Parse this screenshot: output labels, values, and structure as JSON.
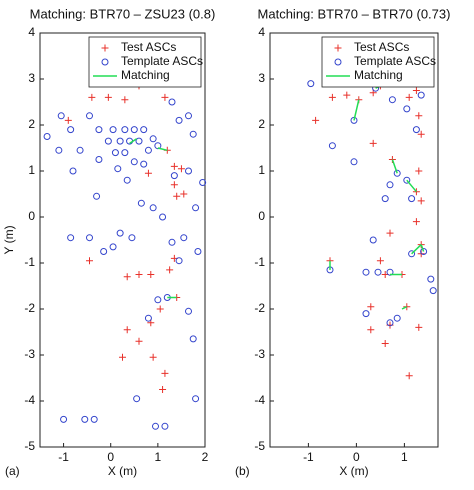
{
  "chart_data": [
    {
      "type": "scatter",
      "title": "Matching: BTR70 – ZSU23 (0.8)",
      "panel_label": "(a)",
      "x_label": "X (m)",
      "y_label": "Y (m)",
      "xlim": [
        -1.5,
        2
      ],
      "xticks": [
        -1,
        0,
        1,
        2
      ],
      "ylim": [
        -5,
        4
      ],
      "yticks": [
        -5,
        -4,
        -3,
        -2,
        -1,
        0,
        1,
        2,
        3,
        4
      ],
      "legend": "upper right",
      "series": [
        {
          "name": "Test ASCs",
          "marker": "plus",
          "color": "#e8312a",
          "x": [
            -0.4,
            -0.05,
            0.3,
            0.6,
            1.15,
            1.2,
            1.35,
            1.35,
            1.4,
            1.55,
            1.5,
            0.8,
            -0.9,
            -0.45,
            0.35,
            0.6,
            0.85,
            1.35,
            1.25,
            1.4,
            1.05,
            0.85,
            0.35,
            0.6,
            0.25,
            0.9,
            1.15,
            1.1
          ],
          "y": [
            2.6,
            2.6,
            2.55,
            2.85,
            2.6,
            1.45,
            1.1,
            0.7,
            0.45,
            0.5,
            1.05,
            0.95,
            2.1,
            -0.95,
            -1.3,
            -1.25,
            -1.25,
            -0.9,
            -1.15,
            -1.75,
            -2.0,
            -2.3,
            -2.45,
            -2.7,
            -3.05,
            -3.05,
            -3.4,
            -3.75
          ]
        },
        {
          "name": "Template ASCs",
          "marker": "circle",
          "color": "#3344cc",
          "x": [
            -1.05,
            -0.85,
            -0.45,
            -1.35,
            -1.1,
            -0.65,
            -0.8,
            -0.25,
            0.05,
            0.3,
            0.5,
            0.7,
            0.9,
            -0.05,
            0.2,
            0.4,
            0.6,
            0.8,
            0.1,
            0.3,
            0.5,
            0.7,
            -0.25,
            0.15,
            0.35,
            1.0,
            1.3,
            1.45,
            1.65,
            1.75,
            1.35,
            1.65,
            1.95,
            1.8,
            -0.3,
            -0.45,
            -0.85,
            0.65,
            0.9,
            1.1,
            1.55,
            1.3,
            1.45,
            1.85,
            0.2,
            0.45,
            0.05,
            -0.15,
            1.0,
            0.8,
            1.2,
            1.65,
            1.75,
            -1.0,
            -0.55,
            -0.35,
            0.95,
            1.15,
            1.8,
            0.55
          ],
          "y": [
            2.2,
            1.9,
            2.2,
            1.75,
            1.45,
            1.45,
            1.0,
            1.9,
            1.9,
            1.9,
            1.9,
            1.9,
            1.7,
            1.65,
            1.65,
            1.65,
            1.65,
            1.45,
            1.4,
            1.4,
            1.2,
            1.15,
            1.25,
            1.05,
            0.8,
            1.55,
            2.5,
            2.1,
            2.2,
            1.8,
            0.9,
            1.0,
            0.75,
            0.2,
            0.45,
            -0.45,
            -0.45,
            0.3,
            0.2,
            0.0,
            -0.45,
            -0.55,
            -0.95,
            -0.75,
            -0.35,
            -0.45,
            -0.65,
            -0.75,
            -1.8,
            -2.2,
            -1.75,
            -2.05,
            -2.65,
            -4.4,
            -4.4,
            -4.4,
            -4.55,
            -4.55,
            -3.95,
            -3.95
          ]
        },
        {
          "name": "Matching",
          "marker": "line",
          "color": "#22dd55",
          "x": [
            1.0,
            1.2,
            null,
            0.4,
            0.55,
            null,
            1.2,
            1.4
          ],
          "y": [
            1.5,
            1.45,
            null,
            1.6,
            1.7,
            null,
            -1.75,
            -1.75
          ]
        }
      ]
    },
    {
      "type": "scatter",
      "title": "Matching: BTR70 – BTR70 (0.73)",
      "panel_label": "(b)",
      "x_label": "X (m)",
      "xlim": [
        -1.8,
        1.7
      ],
      "xticks": [
        -1,
        0,
        1
      ],
      "ylim": [
        -5,
        4
      ],
      "yticks": [
        -5,
        -4,
        -3,
        -2,
        -1,
        0,
        1,
        2,
        3,
        4
      ],
      "legend": "upper right",
      "series": [
        {
          "name": "Test ASCs",
          "marker": "plus",
          "color": "#e8312a",
          "x": [
            -0.85,
            -0.5,
            -0.2,
            0.05,
            0.35,
            0.5,
            1.1,
            1.25,
            1.3,
            1.35,
            0.35,
            0.75,
            1.3,
            1.25,
            1.35,
            1.25,
            0.7,
            1.35,
            -0.55,
            0.5,
            0.6,
            0.95,
            1.35,
            1.05,
            0.3,
            0.3,
            0.6,
            0.7,
            1.3,
            1.1
          ],
          "y": [
            2.1,
            2.6,
            2.65,
            2.55,
            2.7,
            2.85,
            2.6,
            2.75,
            2.2,
            1.8,
            1.6,
            1.25,
            1.0,
            0.55,
            0.35,
            -0.1,
            -0.35,
            -0.6,
            -0.95,
            -0.95,
            -1.25,
            -1.25,
            -0.8,
            -1.95,
            -1.95,
            -2.45,
            -2.75,
            -2.35,
            -2.4,
            -3.45
          ]
        },
        {
          "name": "Template ASCs",
          "marker": "circle",
          "color": "#3344cc",
          "x": [
            -0.95,
            -0.05,
            0.4,
            0.75,
            1.35,
            1.05,
            1.25,
            -0.5,
            -0.05,
            0.85,
            0.7,
            1.05,
            0.6,
            1.15,
            0.35,
            1.4,
            1.15,
            -0.55,
            0.2,
            0.45,
            0.7,
            1.55,
            1.6,
            0.2,
            0.85,
            0.7
          ],
          "y": [
            2.9,
            2.1,
            2.8,
            2.55,
            2.65,
            2.35,
            1.9,
            1.55,
            1.2,
            0.95,
            0.7,
            0.8,
            0.4,
            0.4,
            -0.5,
            -0.75,
            -0.8,
            -1.15,
            -1.2,
            -1.2,
            -1.2,
            -1.35,
            -1.6,
            -2.1,
            -2.2,
            -2.3
          ]
        },
        {
          "name": "Matching",
          "marker": "line",
          "color": "#22dd55",
          "x": [
            -0.05,
            0.05,
            null,
            0.75,
            0.85,
            null,
            1.05,
            1.25,
            null,
            0.4,
            0.5,
            null,
            0.7,
            0.95,
            null,
            1.15,
            1.35,
            null,
            1.4,
            1.35,
            null,
            -0.55,
            -0.55,
            null,
            0.95,
            1.05
          ],
          "y": [
            2.1,
            2.55,
            null,
            1.25,
            0.95,
            null,
            0.8,
            0.55,
            null,
            2.8,
            2.85,
            null,
            -1.25,
            -1.25,
            null,
            -0.8,
            -0.6,
            null,
            -0.75,
            -0.6,
            null,
            -1.15,
            -0.95,
            null,
            -2.0,
            -1.95
          ]
        }
      ]
    }
  ]
}
